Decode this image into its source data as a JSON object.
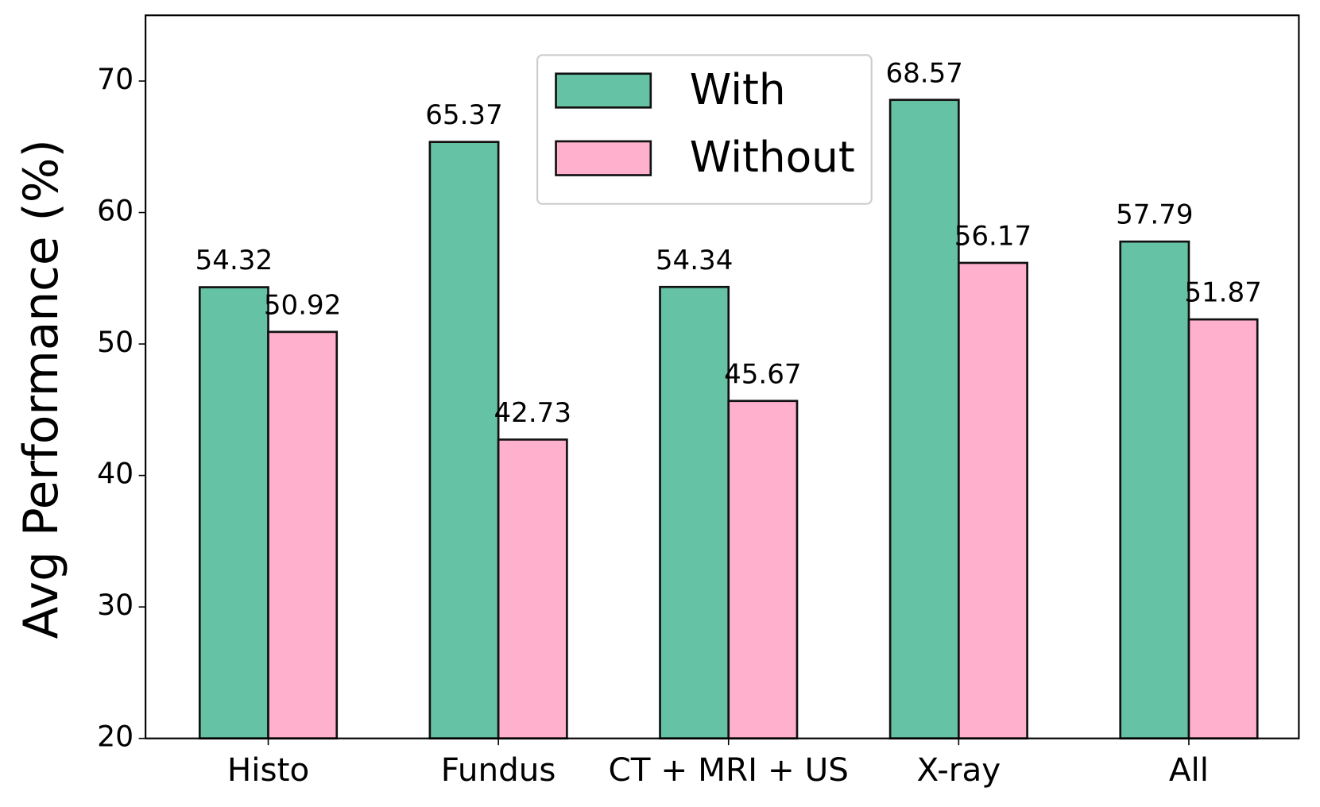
{
  "chart_data": {
    "type": "bar",
    "y_label": "Avg Performance (%)",
    "categories": [
      "Histo",
      "Fundus",
      "CT + MRI + US",
      "X-ray",
      "All"
    ],
    "series": [
      {
        "name": "With",
        "color": "#66c2a5",
        "values": [
          54.32,
          65.37,
          54.34,
          68.57,
          57.79
        ]
      },
      {
        "name": "Without",
        "color": "#ffb0cc",
        "values": [
          50.92,
          42.73,
          45.67,
          56.17,
          51.87
        ]
      }
    ],
    "ylim": [
      20,
      75
    ],
    "yticks": [
      20,
      30,
      40,
      50,
      60,
      70
    ],
    "legend": "upper center",
    "grid": false
  }
}
